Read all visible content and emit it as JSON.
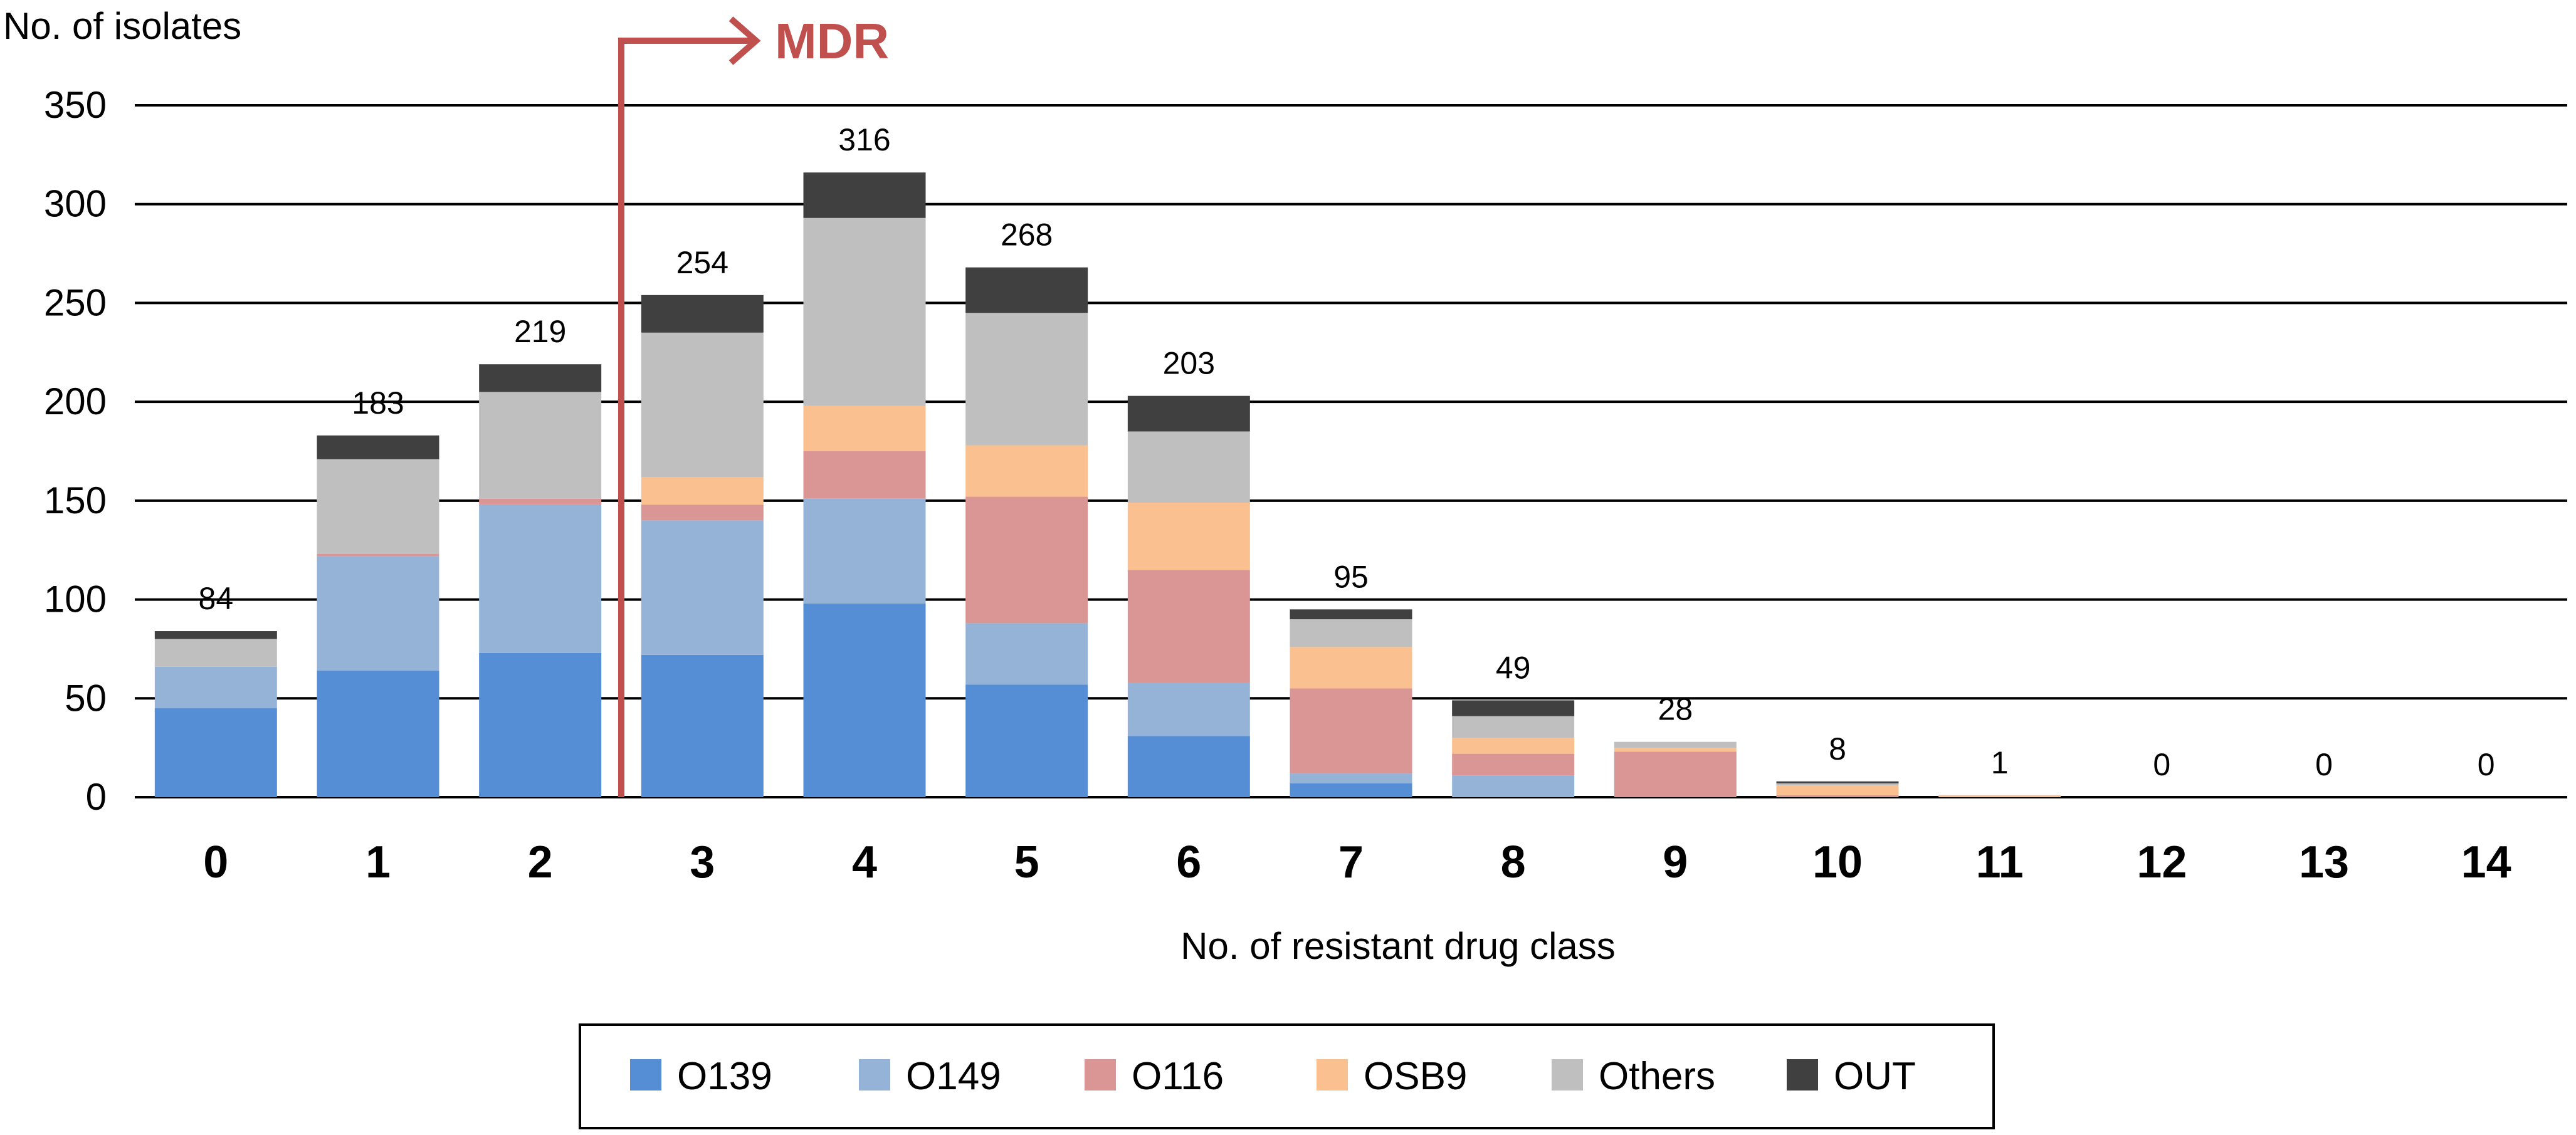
{
  "chart_data": {
    "type": "bar",
    "stacked": true,
    "title": "",
    "xlabel": "No. of resistant drug class",
    "ylabel": "No. of isolates",
    "ylim": [
      0,
      350
    ],
    "yticks": [
      0,
      50,
      100,
      150,
      200,
      250,
      300,
      350
    ],
    "categories": [
      "0",
      "1",
      "2",
      "3",
      "4",
      "5",
      "6",
      "7",
      "8",
      "9",
      "10",
      "11",
      "12",
      "13",
      "14"
    ],
    "totals": [
      84,
      183,
      219,
      254,
      316,
      268,
      203,
      95,
      49,
      28,
      8,
      1,
      0,
      0,
      0
    ],
    "series": [
      {
        "name": "O139",
        "color": "#558ED5",
        "values": [
          45,
          64,
          73,
          72,
          98,
          57,
          31,
          7,
          0,
          0,
          0,
          0,
          0,
          0,
          0
        ]
      },
      {
        "name": "O149",
        "color": "#95B3D7",
        "values": [
          21,
          58,
          75,
          68,
          53,
          31,
          27,
          5,
          11,
          0,
          0,
          0,
          0,
          0,
          0
        ]
      },
      {
        "name": "O116",
        "color": "#D99694",
        "values": [
          0,
          1,
          3,
          8,
          24,
          64,
          57,
          43,
          11,
          23,
          1,
          0,
          0,
          0,
          0
        ]
      },
      {
        "name": "OSB9",
        "color": "#FAC090",
        "values": [
          0,
          0,
          0,
          14,
          23,
          26,
          34,
          21,
          8,
          2,
          5,
          1,
          0,
          0,
          0
        ]
      },
      {
        "name": "Others",
        "color": "#BFBFBF",
        "values": [
          14,
          48,
          54,
          73,
          95,
          67,
          36,
          14,
          11,
          3,
          1,
          0,
          0,
          0,
          0
        ]
      },
      {
        "name": "OUT",
        "color": "#404040",
        "values": [
          4,
          12,
          14,
          19,
          23,
          23,
          18,
          5,
          8,
          0,
          1,
          0,
          0,
          0,
          0
        ]
      }
    ],
    "grid": true,
    "legend": "bottom-center",
    "annotation": {
      "text": "MDR",
      "color": "#C0504D",
      "between_categories": [
        "2",
        "3"
      ]
    }
  }
}
